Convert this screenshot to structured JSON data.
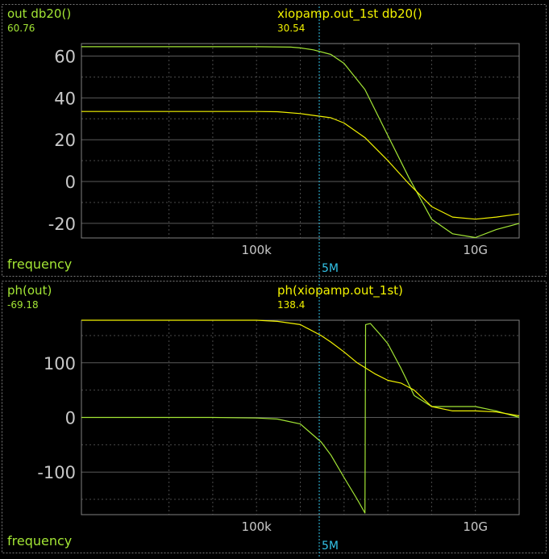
{
  "colors": {
    "background": "#000000",
    "trace_a": "#a3e635",
    "trace_b": "#f2f200",
    "grid": "#4a4a4a",
    "frame": "#808080",
    "tick_text": "#c8c8c8",
    "cursor": "#33c3e8",
    "panel_border": "#7a7a7a"
  },
  "cursor": {
    "label": "5M",
    "value": 5000000
  },
  "chart_data": [
    {
      "type": "line",
      "xscale": "log",
      "xlim": [
        10,
        100000000000
      ],
      "ylim": [
        -27,
        66
      ],
      "yticks": [
        -20,
        0,
        20,
        40,
        60
      ],
      "ytick_labels": [
        "-20",
        "0",
        "20",
        "40",
        "60"
      ],
      "ytick_minor": [
        -10,
        10,
        30,
        50
      ],
      "xticks": [
        100000,
        10000000000
      ],
      "xtick_labels": [
        "100k",
        "10G"
      ],
      "xgrid": [
        1000,
        10000,
        100000,
        1000000,
        10000000,
        100000000,
        1000000000,
        10000000000
      ],
      "xlabel": "frequency",
      "series": [
        {
          "name": "out db20()",
          "color": "#a3e635",
          "cursor_value": "60.76",
          "x": [
            10,
            100000,
            600000,
            1000000,
            2000000,
            5000000,
            10000000,
            30000000,
            100000000,
            300000000,
            1000000000,
            3000000000,
            10000000000,
            30000000000,
            100000000000
          ],
          "y": [
            64.5,
            64.5,
            64.3,
            63.9,
            63.0,
            60.8,
            56.5,
            44.0,
            22.0,
            2.0,
            -18.0,
            -25.0,
            -26.8,
            -23.0,
            -20.0
          ]
        },
        {
          "name": "xiopamp.out_1st db20()",
          "color": "#f2f200",
          "cursor_value": "30.54",
          "x": [
            10,
            100000,
            300000,
            1000000,
            5000000,
            10000000,
            30000000,
            100000000,
            300000000,
            1000000000,
            3000000000,
            10000000000,
            30000000000,
            100000000000
          ],
          "y": [
            33.5,
            33.5,
            33.4,
            32.5,
            30.5,
            28.0,
            21.0,
            10.0,
            -1.0,
            -12.0,
            -17.0,
            -18.0,
            -17.0,
            -15.5
          ]
        }
      ]
    },
    {
      "type": "line",
      "xscale": "log",
      "xlim": [
        10,
        100000000000
      ],
      "ylim": [
        -178,
        178
      ],
      "yticks": [
        -100,
        0,
        100
      ],
      "ytick_labels": [
        "-100",
        "0",
        "100"
      ],
      "ytick_minor": [
        -150,
        -50,
        50,
        150
      ],
      "xticks": [
        100000,
        10000000000
      ],
      "xtick_labels": [
        "100k",
        "10G"
      ],
      "xgrid": [
        1000,
        10000,
        100000,
        1000000,
        10000000,
        100000000,
        1000000000,
        10000000000
      ],
      "xlabel": "frequency",
      "series": [
        {
          "name": "ph(out)",
          "color": "#a3e635",
          "cursor_value": "-69.18",
          "x": [
            10,
            10000,
            100000,
            300000,
            1000000,
            3000000,
            5000000,
            10000000,
            20000000,
            30000000,
            31000000,
            40000000,
            70000000,
            100000000,
            200000000,
            400000000,
            1000000000,
            3000000000,
            10000000000,
            30000000000,
            100000000000
          ],
          "y": [
            0,
            0,
            -1,
            -3,
            -12,
            -45,
            -69,
            -110,
            -150,
            -175,
            170,
            172,
            150,
            135,
            90,
            40,
            20,
            20,
            20,
            12,
            0
          ]
        },
        {
          "name": "ph(xiopamp.out_1st)",
          "color": "#f2f200",
          "cursor_value": "138.4",
          "x": [
            10,
            100000,
            300000,
            1000000,
            3000000,
            5000000,
            10000000,
            20000000,
            50000000,
            100000000,
            200000000,
            400000000,
            1000000000,
            3000000000,
            10000000000,
            30000000000,
            100000000000
          ],
          "y": [
            178,
            178,
            176,
            170,
            150,
            138,
            120,
            100,
            80,
            68,
            63,
            50,
            20,
            12,
            12,
            10,
            3
          ]
        }
      ]
    }
  ]
}
